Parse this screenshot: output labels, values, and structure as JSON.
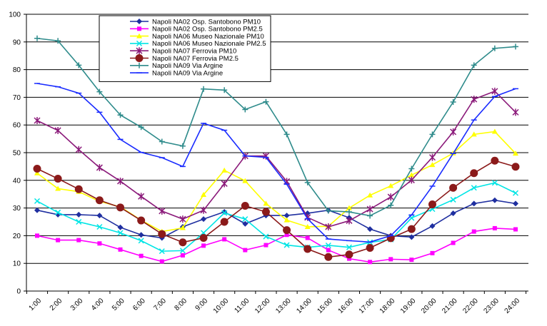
{
  "chart_data": {
    "type": "line",
    "ylim": [
      0,
      100
    ],
    "yticks": [
      "0",
      "10",
      "20",
      "30",
      "40",
      "50",
      "60",
      "70",
      "80",
      "90",
      "100"
    ],
    "categories": [
      "1:00",
      "2:00",
      "3:00",
      "4:00",
      "5:00",
      "6:00",
      "7:00",
      "8:00",
      "9:00",
      "10:00",
      "11:00",
      "12:00",
      "13:00",
      "14:00",
      "15:00",
      "16:00",
      "17:00",
      "18:00",
      "19:00",
      "20:00",
      "21:00",
      "22:00",
      "23:00",
      "24:00"
    ],
    "grid": "horizontal",
    "legend_position": "top-left",
    "series": [
      {
        "name": "Napoli NA02 Osp. Santobono PM10",
        "color": "#1f2fa0",
        "marker": "diamond",
        "values": [
          29.2,
          27.6,
          27.6,
          27.3,
          23.0,
          20.3,
          19.2,
          23.2,
          26.0,
          28.6,
          24.3,
          27.3,
          27.3,
          28.1,
          29.2,
          26.5,
          22.4,
          20.0,
          19.5,
          23.5,
          28.1,
          31.6,
          32.8,
          31.6
        ]
      },
      {
        "name": "Napoli NA02 Osp. Santobono  PM2.5",
        "color": "#ff00ff",
        "marker": "square",
        "values": [
          20.0,
          18.4,
          18.4,
          17.2,
          15.0,
          12.7,
          10.7,
          12.9,
          16.4,
          18.7,
          14.8,
          16.6,
          20.3,
          19.2,
          14.8,
          11.7,
          10.5,
          11.5,
          11.3,
          13.7,
          17.4,
          21.5,
          22.7,
          22.3
        ]
      },
      {
        "name": "Napoli NA06 Museo Nazionale PM10",
        "color": "#ffff00",
        "marker": "triangle",
        "values": [
          42.6,
          37.0,
          35.9,
          32.4,
          30.4,
          25.6,
          21.5,
          22.8,
          34.8,
          43.6,
          39.8,
          31.6,
          25.6,
          23.2,
          23.4,
          30.0,
          34.6,
          38.0,
          41.9,
          45.6,
          49.8,
          56.6,
          57.6,
          49.7
        ]
      },
      {
        "name": "Napoli NA06 Museo Nazionale  PM2.5",
        "color": "#00e5e5",
        "marker": "x",
        "values": [
          32.5,
          28.4,
          25.0,
          23.2,
          21.0,
          18.2,
          14.4,
          14.6,
          21.0,
          28.2,
          26.0,
          19.7,
          16.6,
          15.8,
          16.5,
          15.8,
          17.6,
          18.6,
          26.4,
          29.6,
          33.0,
          37.3,
          39.1,
          35.4
        ]
      },
      {
        "name": "Napoli NA07 Ferrovia PM10",
        "color": "#8b1a7a",
        "marker": "star",
        "values": [
          61.6,
          58.0,
          51.1,
          44.6,
          39.7,
          34.2,
          28.9,
          26.0,
          29.2,
          38.8,
          48.8,
          48.8,
          39.6,
          26.6,
          23.2,
          25.4,
          29.6,
          34.0,
          40.1,
          48.3,
          57.5,
          69.3,
          72.2,
          64.6
        ]
      },
      {
        "name": "Napoli NA07 Ferrovia  PM2.5",
        "color": "#8b1a1a",
        "marker": "circle",
        "values": [
          44.2,
          40.6,
          36.8,
          32.8,
          30.2,
          25.5,
          20.6,
          17.6,
          19.2,
          25.0,
          30.8,
          28.6,
          22.0,
          15.2,
          12.3,
          13.2,
          15.6,
          19.1,
          22.4,
          31.3,
          37.3,
          42.6,
          47.1,
          44.9
        ]
      },
      {
        "name": "Napoli NA09 Via Argine",
        "color": "#2e8b8b",
        "marker": "plus",
        "values": [
          91.3,
          90.4,
          81.6,
          72.0,
          63.6,
          59.2,
          54.0,
          52.4,
          73.0,
          72.6,
          65.6,
          68.4,
          56.6,
          39.2,
          29.0,
          28.6,
          27.2,
          31.0,
          44.2,
          56.6,
          68.3,
          81.6,
          87.7,
          88.3
        ]
      },
      {
        "name": "Napoli NA09 Via Argine",
        "color": "#1a2cff",
        "marker": "bar",
        "values": [
          75.0,
          73.8,
          71.5,
          64.6,
          54.8,
          50.1,
          48.2,
          45.0,
          60.6,
          58.1,
          48.8,
          48.3,
          38.6,
          26.1,
          18.8,
          18.2,
          17.7,
          20.0,
          27.5,
          37.9,
          49.7,
          61.8,
          70.3,
          73.1
        ]
      }
    ]
  }
}
